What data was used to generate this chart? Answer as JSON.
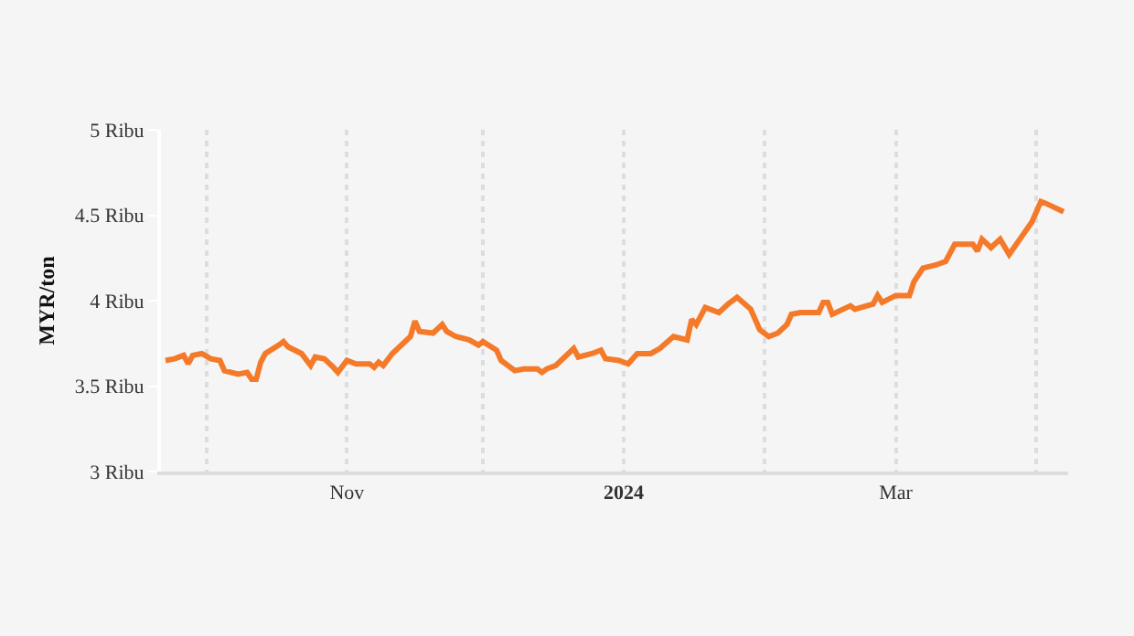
{
  "chart_data": {
    "type": "line",
    "ylabel": "MYR/ton",
    "x": [
      "2023-09-22",
      "2023-09-24",
      "2023-09-26",
      "2023-09-27",
      "2023-09-28",
      "2023-09-30",
      "2023-10-02",
      "2023-10-04",
      "2023-10-05",
      "2023-10-08",
      "2023-10-10",
      "2023-10-11",
      "2023-10-12",
      "2023-10-13",
      "2023-10-14",
      "2023-10-17",
      "2023-10-18",
      "2023-10-19",
      "2023-10-22",
      "2023-10-24",
      "2023-10-25",
      "2023-10-27",
      "2023-10-29",
      "2023-10-30",
      "2023-11-01",
      "2023-11-03",
      "2023-11-06",
      "2023-11-07",
      "2023-11-08",
      "2023-11-09",
      "2023-11-11",
      "2023-11-15",
      "2023-11-16",
      "2023-11-17",
      "2023-11-20",
      "2023-11-22",
      "2023-11-23",
      "2023-11-25",
      "2023-11-28",
      "2023-11-30",
      "2023-12-01",
      "2023-12-04",
      "2023-12-05",
      "2023-12-08",
      "2023-12-10",
      "2023-12-13",
      "2023-12-14",
      "2023-12-15",
      "2023-12-17",
      "2023-12-19",
      "2023-12-21",
      "2023-12-22",
      "2023-12-25",
      "2023-12-27",
      "2023-12-28",
      "2023-12-31",
      "2024-01-02",
      "2024-01-04",
      "2024-01-07",
      "2024-01-09",
      "2024-01-12",
      "2024-01-15",
      "2024-01-16",
      "2024-01-17",
      "2024-01-19",
      "2024-01-22",
      "2024-01-24",
      "2024-01-26",
      "2024-01-29",
      "2024-01-31",
      "2024-02-02",
      "2024-02-04",
      "2024-02-06",
      "2024-02-07",
      "2024-02-09",
      "2024-02-13",
      "2024-02-14",
      "2024-02-15",
      "2024-02-16",
      "2024-02-20",
      "2024-02-21",
      "2024-02-25",
      "2024-02-26",
      "2024-02-27",
      "2024-03-01",
      "2024-03-04",
      "2024-03-05",
      "2024-03-07",
      "2024-03-10",
      "2024-03-12",
      "2024-03-14",
      "2024-03-18",
      "2024-03-19",
      "2024-03-20",
      "2024-03-22",
      "2024-03-24",
      "2024-03-26",
      "2024-03-31",
      "2024-04-02",
      "2024-04-03",
      "2024-04-07"
    ],
    "series": [
      {
        "color": "#f47a2a",
        "values": [
          3.65,
          3.66,
          3.68,
          3.63,
          3.68,
          3.69,
          3.66,
          3.65,
          3.59,
          3.57,
          3.58,
          3.54,
          3.54,
          3.64,
          3.69,
          3.74,
          3.76,
          3.73,
          3.69,
          3.62,
          3.67,
          3.66,
          3.61,
          3.58,
          3.65,
          3.63,
          3.63,
          3.61,
          3.64,
          3.62,
          3.69,
          3.79,
          3.88,
          3.82,
          3.81,
          3.86,
          3.82,
          3.79,
          3.77,
          3.74,
          3.76,
          3.71,
          3.65,
          3.59,
          3.6,
          3.6,
          3.58,
          3.6,
          3.62,
          3.67,
          3.72,
          3.67,
          3.69,
          3.71,
          3.66,
          3.65,
          3.63,
          3.69,
          3.69,
          3.72,
          3.79,
          3.77,
          3.89,
          3.86,
          3.96,
          3.93,
          3.98,
          4.02,
          3.95,
          3.83,
          3.79,
          3.81,
          3.86,
          3.92,
          3.93,
          3.93,
          3.99,
          3.99,
          3.92,
          3.97,
          3.95,
          3.98,
          4.03,
          3.99,
          4.03,
          4.03,
          4.11,
          4.19,
          4.21,
          4.23,
          4.33,
          4.33,
          4.29,
          4.36,
          4.31,
          4.36,
          4.27,
          4.46,
          4.58,
          4.57,
          4.52
        ]
      }
    ],
    "xlim": [
      "2023-09-21",
      "2024-04-08"
    ],
    "xticks": [
      {
        "value": "2023-10-01",
        "label": null
      },
      {
        "value": "2023-11-01",
        "label": "Nov"
      },
      {
        "value": "2023-12-01",
        "label": null
      },
      {
        "value": "2024-01-01",
        "label": "2024"
      },
      {
        "value": "2024-02-01",
        "label": null
      },
      {
        "value": "2024-03-01",
        "label": "Mar"
      },
      {
        "value": "2024-04-01",
        "label": null
      }
    ],
    "ylim": [
      3,
      5
    ],
    "yticks": [
      {
        "value": 3,
        "label": "3 Ribu"
      },
      {
        "value": 3.5,
        "label": "3.5 Ribu"
      },
      {
        "value": 4,
        "label": "4 Ribu"
      },
      {
        "value": 4.5,
        "label": "4.5 Ribu"
      },
      {
        "value": 5,
        "label": "5 Ribu"
      }
    ],
    "grid": "x",
    "marker": "none",
    "line_style": "solid"
  }
}
